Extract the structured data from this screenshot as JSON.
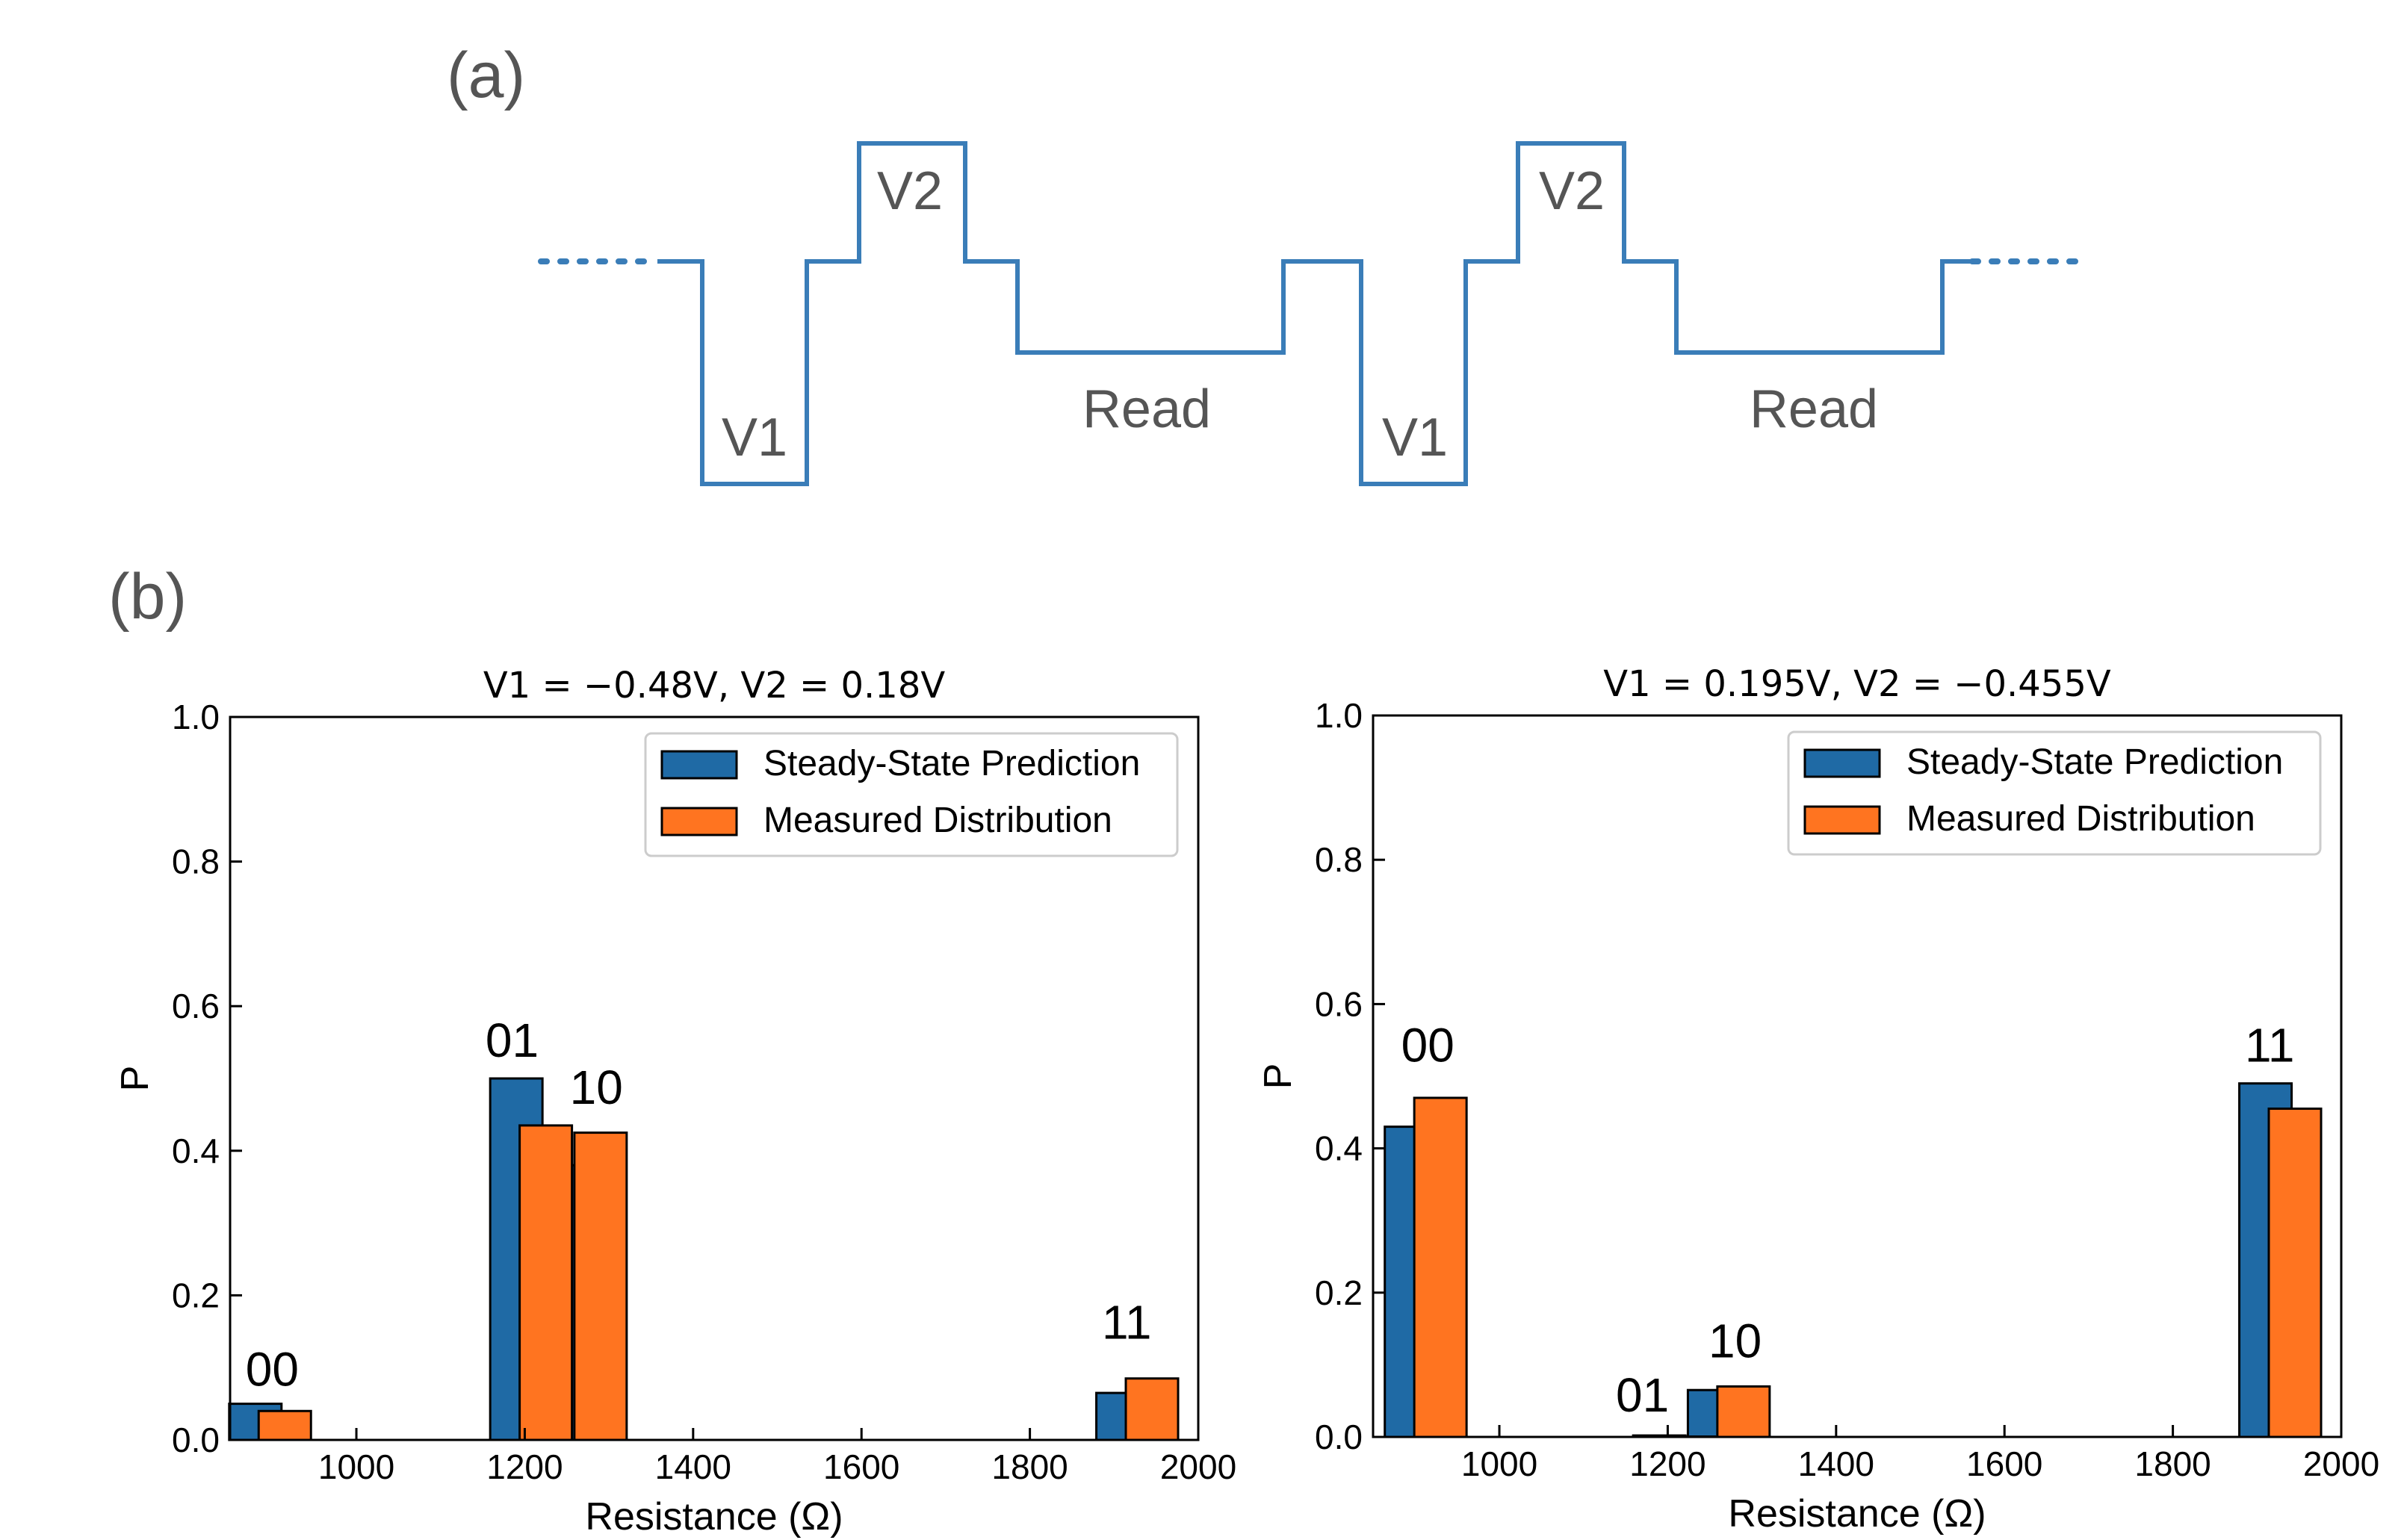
{
  "panel_a": {
    "label": "(a)",
    "wave_labels": [
      "V1",
      "V2",
      "Read",
      "V1",
      "V2",
      "Read"
    ]
  },
  "panel_b": {
    "label": "(b)"
  },
  "colors": {
    "waveform": "#3a7db8",
    "steady_state": "#1f6aa5",
    "measured": "#ff7420",
    "text": "#555555"
  },
  "chart_data": [
    {
      "type": "bar",
      "title": "V1 = −0.48V, V2 = 0.18V",
      "xlabel": "Resistance (Ω)",
      "ylabel": "P",
      "xlim": [
        850,
        2000
      ],
      "ylim": [
        0,
        1.0
      ],
      "xticks": [
        "1000",
        "1200",
        "1400",
        "1600",
        "1800",
        "2000"
      ],
      "yticks": [
        "0.0",
        "0.2",
        "0.4",
        "0.6",
        "0.8",
        "1.0"
      ],
      "legend": {
        "placement": "upper-right",
        "entries": [
          "Steady-State Prediction",
          "Measured Distribution"
        ]
      },
      "series": [
        {
          "name": "Steady-State Prediction",
          "x": [
            880,
            1190,
            1255,
            1910
          ],
          "values": [
            0.05,
            0.5,
            0.38,
            0.065
          ]
        },
        {
          "name": "Measured Distribution",
          "x": [
            915,
            1225,
            1290,
            1945
          ],
          "values": [
            0.04,
            0.435,
            0.425,
            0.085
          ]
        }
      ],
      "annotations": [
        {
          "text": "00",
          "x": 900,
          "y": 0.075
        },
        {
          "text": "01",
          "x": 1185,
          "y": 0.53
        },
        {
          "text": "10",
          "x": 1285,
          "y": 0.465
        },
        {
          "text": "11",
          "x": 1915,
          "y": 0.14
        }
      ]
    },
    {
      "type": "bar",
      "title": "V1 = 0.195V, V2 = −0.455V",
      "xlabel": "Resistance (Ω)",
      "ylabel": "P",
      "xlim": [
        850,
        2000
      ],
      "ylim": [
        0,
        1.0
      ],
      "xticks": [
        "1000",
        "1200",
        "1400",
        "1600",
        "1800",
        "2000"
      ],
      "yticks": [
        "0.0",
        "0.2",
        "0.4",
        "0.6",
        "0.8",
        "1.0"
      ],
      "legend": {
        "placement": "upper-right",
        "entries": [
          "Steady-State Prediction",
          "Measured Distribution"
        ]
      },
      "series": [
        {
          "name": "Steady-State Prediction",
          "x": [
            895,
            1190,
            1255,
            1910
          ],
          "values": [
            0.43,
            0.002,
            0.065,
            0.49
          ]
        },
        {
          "name": "Measured Distribution",
          "x": [
            930,
            1225,
            1290,
            1945
          ],
          "values": [
            0.47,
            0.0,
            0.07,
            0.455
          ]
        }
      ],
      "annotations": [
        {
          "text": "00",
          "x": 915,
          "y": 0.52
        },
        {
          "text": "01",
          "x": 1170,
          "y": 0.035
        },
        {
          "text": "10",
          "x": 1280,
          "y": 0.11
        },
        {
          "text": "11",
          "x": 1915,
          "y": 0.52
        }
      ]
    }
  ]
}
